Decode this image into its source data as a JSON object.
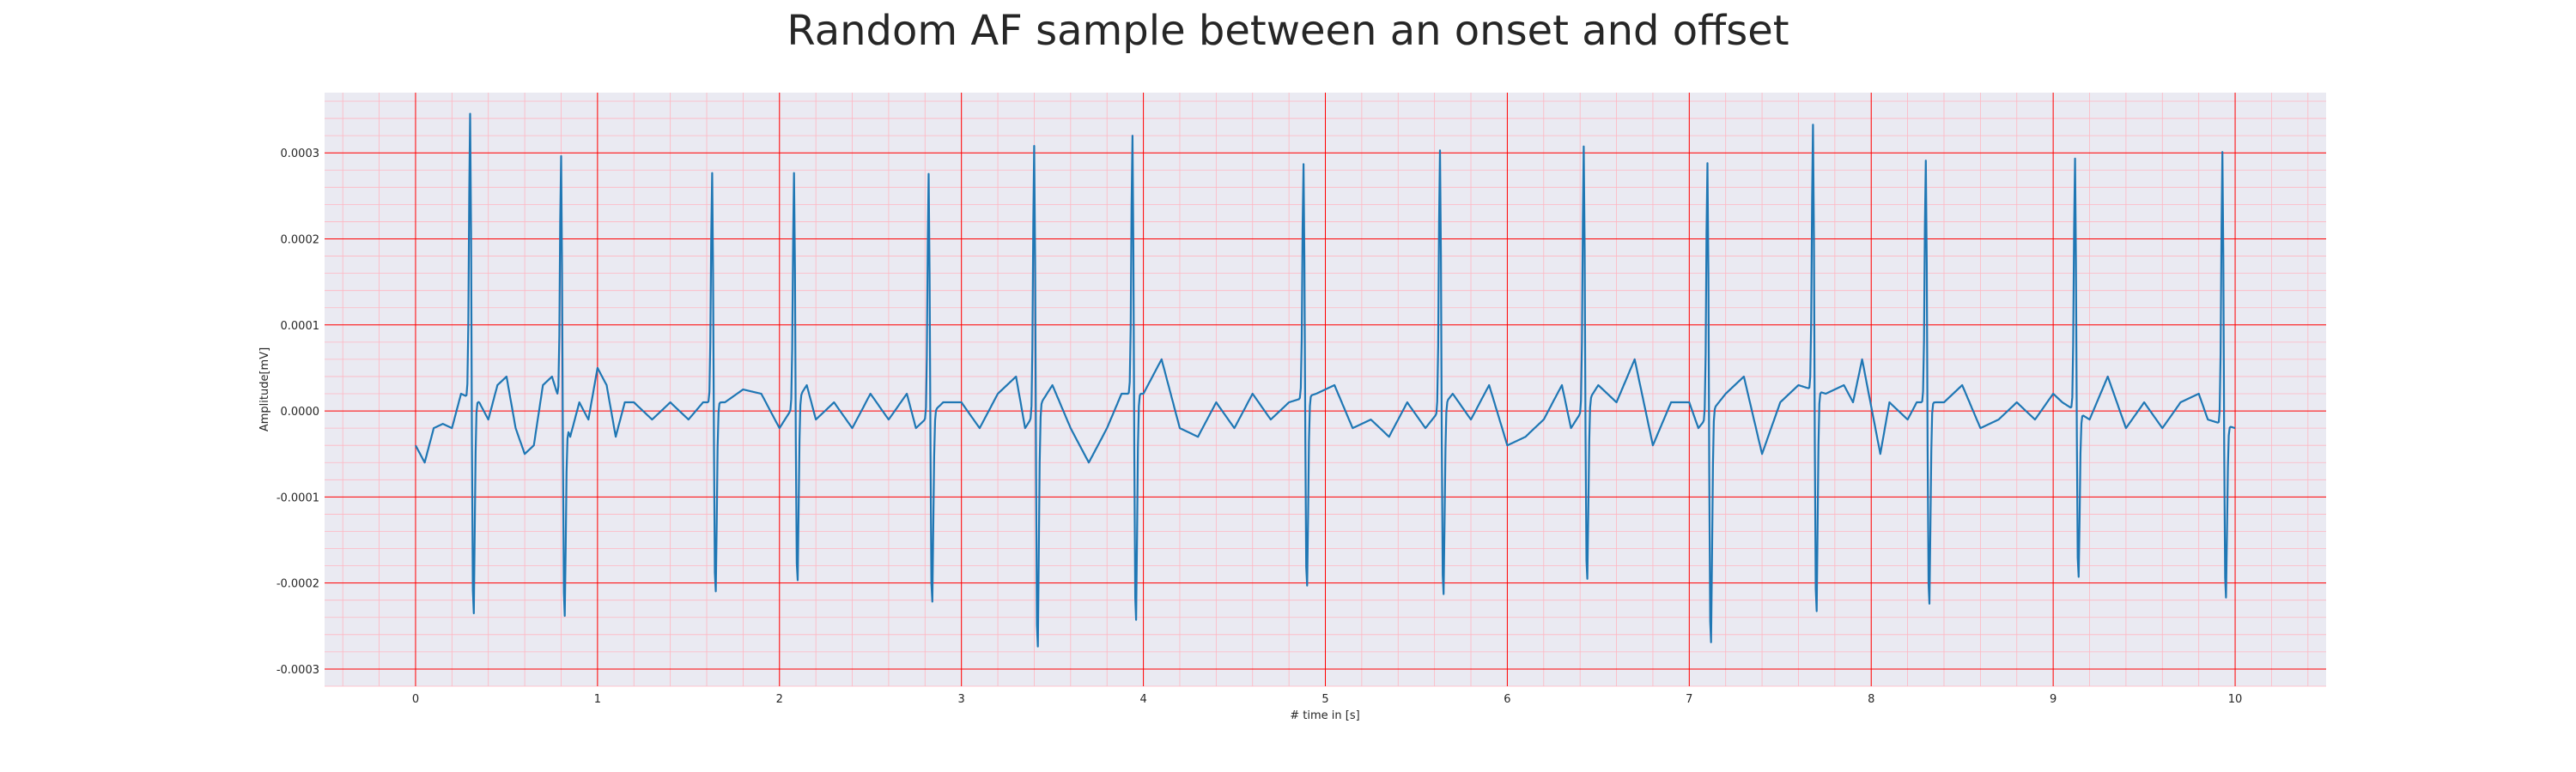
{
  "chart_data": {
    "type": "line",
    "title": "Random AF sample between an onset and offset",
    "xlabel": "# time in [s]",
    "ylabel": "Amplitude[mV]",
    "xlim": [
      -0.5,
      10.5
    ],
    "ylim": [
      -0.00032,
      0.00037
    ],
    "xticks": [
      0,
      1,
      2,
      3,
      4,
      5,
      6,
      7,
      8,
      9,
      10
    ],
    "xtick_labels": [
      "0",
      "1",
      "2",
      "3",
      "4",
      "5",
      "6",
      "7",
      "8",
      "9",
      "10"
    ],
    "yticks": [
      -0.0003,
      -0.0002,
      -0.0001,
      0.0,
      0.0001,
      0.0002,
      0.0003
    ],
    "ytick_labels": [
      "-0.0003",
      "-0.0002",
      "-0.0001",
      "0.0000",
      "0.0001",
      "0.0002",
      "0.0003"
    ],
    "grid": true,
    "minor_grid": true,
    "colors": {
      "line": "#1f77b4",
      "plot_background": "#eaeaf2",
      "grid_major": "#ff0000",
      "grid_minor": "#ffb6c1"
    },
    "series": [
      {
        "beats": [
          {
            "t": 0.3,
            "peak": 0.00034,
            "trough": -0.00026
          },
          {
            "t": 0.8,
            "peak": 0.0003,
            "trough": -0.00024
          },
          {
            "t": 1.63,
            "peak": 0.000275,
            "trough": -0.00023
          },
          {
            "t": 2.08,
            "peak": 0.000278,
            "trough": -0.00022
          },
          {
            "t": 2.82,
            "peak": 0.00029,
            "trough": -0.00023
          },
          {
            "t": 3.4,
            "peak": 0.000322,
            "trough": -0.00029
          },
          {
            "t": 3.94,
            "peak": 0.00031,
            "trough": -0.000275
          },
          {
            "t": 4.88,
            "peak": 0.00028,
            "trough": -0.00023
          },
          {
            "t": 5.63,
            "peak": 0.00031,
            "trough": -0.00023
          },
          {
            "t": 6.42,
            "peak": 0.000312,
            "trough": -0.000215
          },
          {
            "t": 7.1,
            "peak": 0.000305,
            "trough": -0.00028
          },
          {
            "t": 7.68,
            "peak": 0.000318,
            "trough": -0.000268
          },
          {
            "t": 8.3,
            "peak": 0.00029,
            "trough": -0.000245
          },
          {
            "t": 9.12,
            "peak": 0.0003,
            "trough": -0.0002
          },
          {
            "t": 9.93,
            "peak": 0.000324,
            "trough": -0.00021
          }
        ],
        "baseline": [
          [
            0.0,
            -4e-05
          ],
          [
            0.05,
            -6e-05
          ],
          [
            0.1,
            -2e-05
          ],
          [
            0.15,
            -1.5e-05
          ],
          [
            0.2,
            -2e-05
          ],
          [
            0.25,
            2e-05
          ],
          [
            0.35,
            1e-05
          ],
          [
            0.4,
            -1e-05
          ],
          [
            0.45,
            3e-05
          ],
          [
            0.5,
            4e-05
          ],
          [
            0.55,
            -2e-05
          ],
          [
            0.6,
            -5e-05
          ],
          [
            0.65,
            -4e-05
          ],
          [
            0.7,
            3e-05
          ],
          [
            0.75,
            4e-05
          ],
          [
            0.85,
            -3e-05
          ],
          [
            0.9,
            1e-05
          ],
          [
            0.95,
            -1e-05
          ],
          [
            1.0,
            5e-05
          ],
          [
            1.05,
            3e-05
          ],
          [
            1.1,
            -3e-05
          ],
          [
            1.15,
            1e-05
          ],
          [
            1.2,
            1e-05
          ],
          [
            1.3,
            -1e-05
          ],
          [
            1.4,
            1e-05
          ],
          [
            1.5,
            -1e-05
          ],
          [
            1.58,
            1e-05
          ],
          [
            1.7,
            1e-05
          ],
          [
            1.8,
            2.5e-05
          ],
          [
            1.9,
            2e-05
          ],
          [
            2.0,
            -2e-05
          ],
          [
            2.15,
            3e-05
          ],
          [
            2.2,
            -1e-05
          ],
          [
            2.3,
            1e-05
          ],
          [
            2.4,
            -2e-05
          ],
          [
            2.5,
            2e-05
          ],
          [
            2.6,
            -1e-05
          ],
          [
            2.7,
            2e-05
          ],
          [
            2.75,
            -2e-05
          ],
          [
            2.9,
            1e-05
          ],
          [
            3.0,
            1e-05
          ],
          [
            3.1,
            -2e-05
          ],
          [
            3.2,
            2e-05
          ],
          [
            3.3,
            4e-05
          ],
          [
            3.35,
            -2e-05
          ],
          [
            3.5,
            3e-05
          ],
          [
            3.6,
            -2e-05
          ],
          [
            3.7,
            -6e-05
          ],
          [
            3.8,
            -2e-05
          ],
          [
            3.88,
            2e-05
          ],
          [
            4.0,
            2e-05
          ],
          [
            4.1,
            6e-05
          ],
          [
            4.2,
            -2e-05
          ],
          [
            4.3,
            -3e-05
          ],
          [
            4.4,
            1e-05
          ],
          [
            4.5,
            -2e-05
          ],
          [
            4.6,
            2e-05
          ],
          [
            4.7,
            -1e-05
          ],
          [
            4.8,
            1e-05
          ],
          [
            4.95,
            2e-05
          ],
          [
            5.05,
            3e-05
          ],
          [
            5.15,
            -2e-05
          ],
          [
            5.25,
            -1e-05
          ],
          [
            5.35,
            -3e-05
          ],
          [
            5.45,
            1e-05
          ],
          [
            5.55,
            -2e-05
          ],
          [
            5.7,
            2e-05
          ],
          [
            5.8,
            -1e-05
          ],
          [
            5.9,
            3e-05
          ],
          [
            6.0,
            -4e-05
          ],
          [
            6.1,
            -3e-05
          ],
          [
            6.2,
            -1e-05
          ],
          [
            6.3,
            3e-05
          ],
          [
            6.35,
            -2e-05
          ],
          [
            6.5,
            3e-05
          ],
          [
            6.6,
            1e-05
          ],
          [
            6.7,
            6e-05
          ],
          [
            6.8,
            -4e-05
          ],
          [
            6.9,
            1e-05
          ],
          [
            7.0,
            1e-05
          ],
          [
            7.05,
            -2e-05
          ],
          [
            7.2,
            2e-05
          ],
          [
            7.3,
            4e-05
          ],
          [
            7.4,
            -5e-05
          ],
          [
            7.5,
            1e-05
          ],
          [
            7.6,
            3e-05
          ],
          [
            7.75,
            2e-05
          ],
          [
            7.85,
            3e-05
          ],
          [
            7.9,
            1e-05
          ],
          [
            7.95,
            6e-05
          ],
          [
            8.05,
            -5e-05
          ],
          [
            8.1,
            1e-05
          ],
          [
            8.2,
            -1e-05
          ],
          [
            8.25,
            1e-05
          ],
          [
            8.4,
            1e-05
          ],
          [
            8.5,
            3e-05
          ],
          [
            8.6,
            -2e-05
          ],
          [
            8.7,
            -1e-05
          ],
          [
            8.8,
            1e-05
          ],
          [
            8.9,
            -1e-05
          ],
          [
            9.0,
            2e-05
          ],
          [
            9.05,
            1e-05
          ],
          [
            9.2,
            -1e-05
          ],
          [
            9.3,
            4e-05
          ],
          [
            9.4,
            -2e-05
          ],
          [
            9.5,
            1e-05
          ],
          [
            9.6,
            -2e-05
          ],
          [
            9.7,
            1e-05
          ],
          [
            9.8,
            2e-05
          ],
          [
            9.85,
            -1e-05
          ],
          [
            10.0,
            -2e-05
          ]
        ]
      }
    ]
  }
}
